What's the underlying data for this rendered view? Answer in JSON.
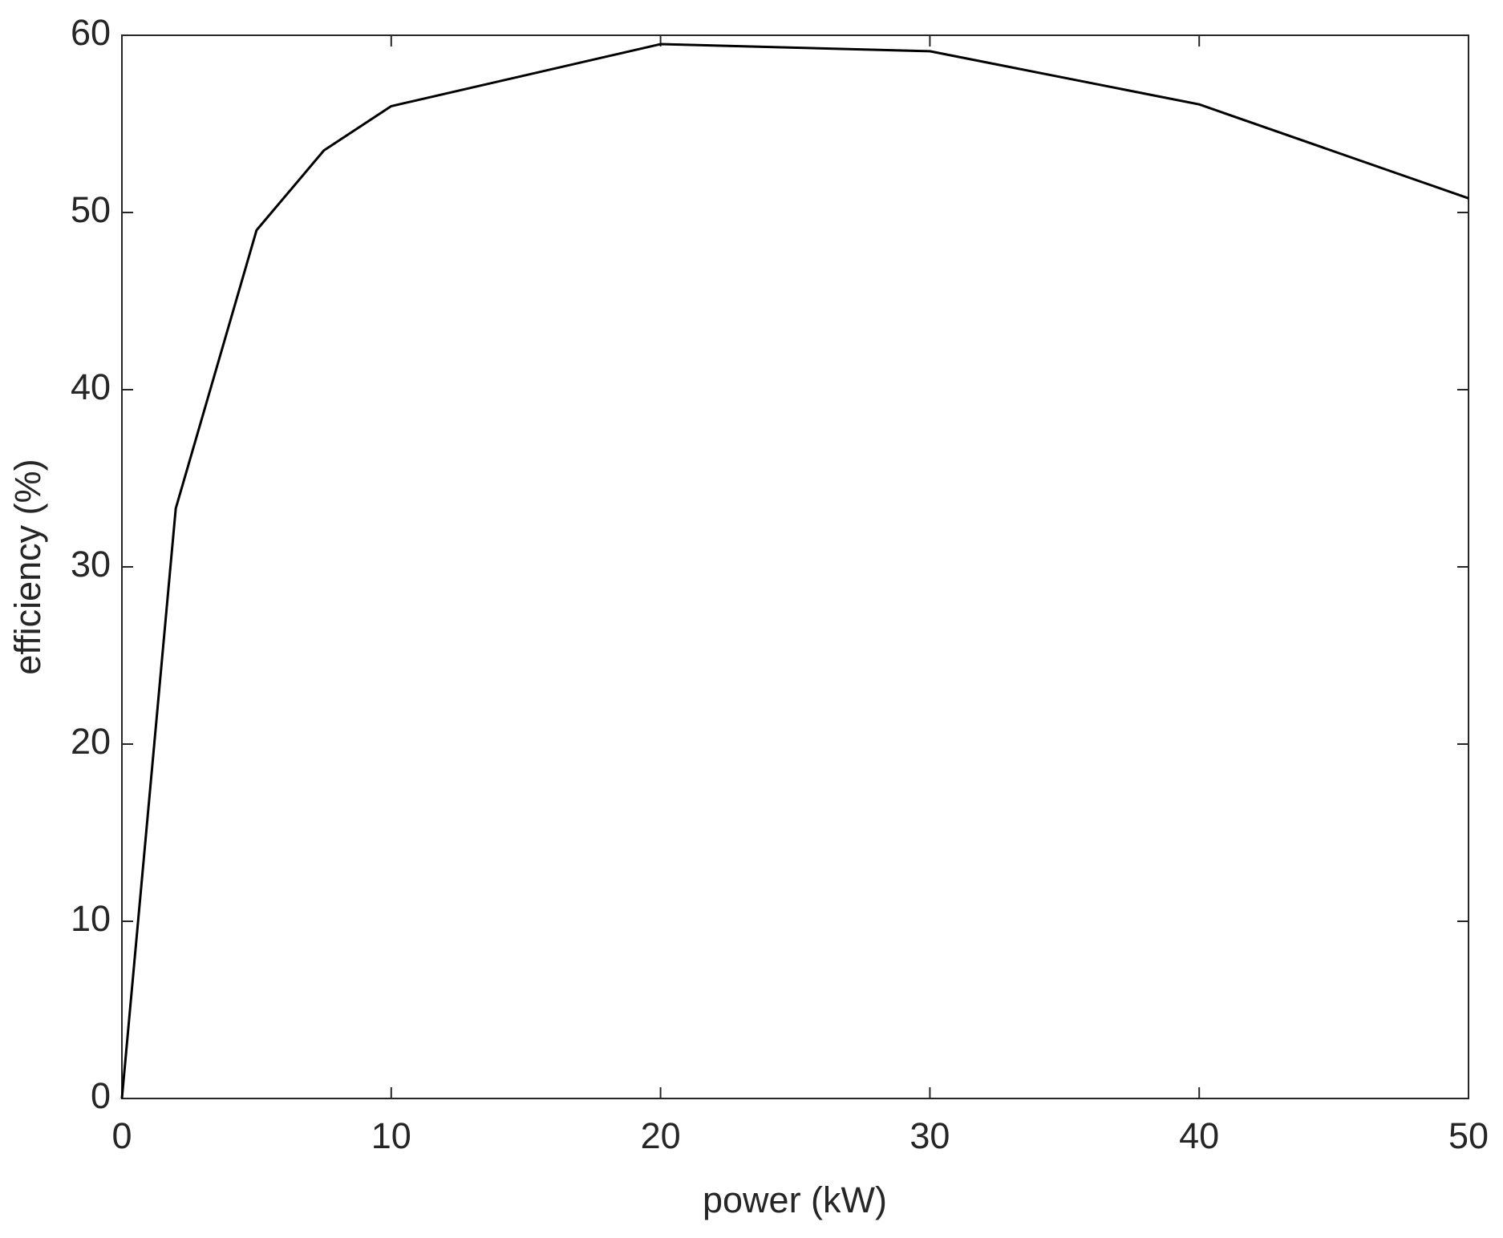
{
  "chart_data": {
    "type": "line",
    "x_label": "power (kW)",
    "y_label": "efficiency (%)",
    "x": [
      0,
      2,
      5,
      7.5,
      10,
      20,
      30,
      40,
      50
    ],
    "series": [
      {
        "color": "#000000",
        "values": [
          0,
          33.3,
          49,
          53.5,
          56,
          59.5,
          59.1,
          56.1,
          50.8
        ]
      }
    ],
    "xlim": [
      0,
      50
    ],
    "xticks": [
      0,
      10,
      20,
      30,
      40,
      50
    ],
    "ylim": [
      0,
      60
    ],
    "yticks": [
      0,
      10,
      20,
      30,
      40,
      50,
      60
    ],
    "grid": false
  }
}
